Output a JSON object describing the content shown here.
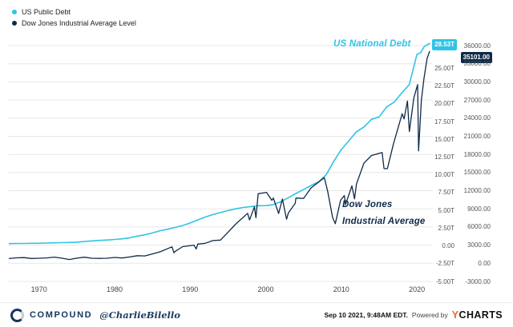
{
  "colors": {
    "cyan": "#2fc3e6",
    "navy": "#0e2b49",
    "orange": "#f26822",
    "grid": "#e7e7e7"
  },
  "legend": {
    "items": [
      {
        "label": "US Public Debt",
        "color": "#2fc3e6"
      },
      {
        "label": "Dow Jones Industrial Average Level",
        "color": "#0e2b49"
      }
    ]
  },
  "annotations": {
    "debt_label": "US National Debt",
    "dow_label_line1": "Dow Jones",
    "dow_label_line2": "Industrial Average",
    "debt_value": "28.53T",
    "dow_value": "35101.00"
  },
  "footer": {
    "brand": "COMPOUND",
    "handle": "@CharlieBilello",
    "timestamp": "Sep 10 2021, 9:48AM EDT.",
    "powered_by": "Powered by",
    "provider_y": "Y",
    "provider_rest": "CHARTS"
  },
  "chart_data": {
    "type": "line",
    "legend_position": "top-left",
    "grid": "horizontal",
    "x_axis": {
      "min": 1966,
      "max": 2021.9,
      "ticks": [
        1970,
        1980,
        1990,
        2000,
        2010,
        2020
      ]
    },
    "debt_axis": {
      "min": -5,
      "max": 25,
      "unit": "trillion USD",
      "ticks": [
        {
          "v": 25,
          "label": "25.00T"
        },
        {
          "v": 22.5,
          "label": "22.50T"
        },
        {
          "v": 20,
          "label": "20.00T"
        },
        {
          "v": 17.5,
          "label": "17.50T"
        },
        {
          "v": 15,
          "label": "15.00T"
        },
        {
          "v": 12.5,
          "label": "12.50T"
        },
        {
          "v": 10,
          "label": "10.00T"
        },
        {
          "v": 7.5,
          "label": "7.50T"
        },
        {
          "v": 5,
          "label": "5.00T"
        },
        {
          "v": 2.5,
          "label": "2.50T"
        },
        {
          "v": 0,
          "label": "0.00"
        },
        {
          "v": -2.5,
          "label": "-2.50T"
        },
        {
          "v": -5,
          "label": "-5.00T"
        }
      ]
    },
    "dow_axis": {
      "min": -3000,
      "max": 36000,
      "unit": "index points",
      "ticks": [
        {
          "v": 36000,
          "label": "36000.00"
        },
        {
          "v": 33000,
          "label": "33000.00"
        },
        {
          "v": 30000,
          "label": "30000.00"
        },
        {
          "v": 27000,
          "label": "27000.00"
        },
        {
          "v": 24000,
          "label": "24000.00"
        },
        {
          "v": 21000,
          "label": "21000.00"
        },
        {
          "v": 18000,
          "label": "18000.00"
        },
        {
          "v": 15000,
          "label": "15000.00"
        },
        {
          "v": 12000,
          "label": "12000.00"
        },
        {
          "v": 9000,
          "label": "9000.00"
        },
        {
          "v": 6000,
          "label": "6000.00"
        },
        {
          "v": 3000,
          "label": "3000.00"
        },
        {
          "v": 0,
          "label": "0.00"
        },
        {
          "v": -3000,
          "label": "-3000.00"
        }
      ]
    },
    "series": [
      {
        "name": "US Public Debt",
        "axis": "debt",
        "color": "#2fc3e6",
        "last_value_label": "28.53T",
        "x": [
          1966,
          1967,
          1968,
          1969,
          1970,
          1971,
          1972,
          1973,
          1974,
          1975,
          1976,
          1977,
          1978,
          1979,
          1980,
          1981,
          1982,
          1983,
          1984,
          1985,
          1986,
          1987,
          1988,
          1989,
          1990,
          1991,
          1992,
          1993,
          1994,
          1995,
          1996,
          1997,
          1998,
          1999,
          2000,
          2001,
          2002,
          2003,
          2004,
          2005,
          2006,
          2007,
          2008,
          2009,
          2010,
          2011,
          2012,
          2013,
          2014,
          2015,
          2016,
          2017,
          2018,
          2019,
          2020,
          2020.5,
          2021,
          2021.75
        ],
        "values": [
          0.32,
          0.34,
          0.35,
          0.37,
          0.37,
          0.4,
          0.43,
          0.46,
          0.48,
          0.53,
          0.62,
          0.7,
          0.77,
          0.83,
          0.91,
          1.0,
          1.14,
          1.38,
          1.56,
          1.82,
          2.13,
          2.35,
          2.6,
          2.87,
          3.23,
          3.67,
          4.06,
          4.41,
          4.69,
          4.97,
          5.22,
          5.41,
          5.53,
          5.66,
          5.67,
          5.81,
          6.23,
          6.78,
          7.38,
          7.93,
          8.51,
          9.01,
          10.02,
          11.91,
          13.56,
          14.79,
          16.07,
          16.74,
          17.82,
          18.15,
          19.57,
          20.24,
          21.52,
          22.72,
          26.95,
          27.2,
          28.1,
          28.53
        ]
      },
      {
        "name": "Dow Jones Industrial Average Level",
        "axis": "dow",
        "color": "#0e2b49",
        "last_value_label": "35101.00",
        "x": [
          1966,
          1967,
          1968,
          1969,
          1970,
          1971,
          1972,
          1973,
          1974,
          1975,
          1976,
          1977,
          1978,
          1979,
          1980,
          1981,
          1982,
          1983,
          1984,
          1985,
          1986,
          1987.6,
          1987.85,
          1988,
          1989,
          1990.5,
          1990.8,
          1991,
          1992,
          1993,
          1994,
          1995,
          1996,
          1997.6,
          1997.85,
          1998.5,
          1998.7,
          1999,
          2000.1,
          2000.8,
          2001,
          2001.7,
          2002.2,
          2002.75,
          2003,
          2003.9,
          2004,
          2005,
          2006,
          2007.75,
          2008.2,
          2008.85,
          2009.2,
          2009.9,
          2010.4,
          2010.55,
          2011.4,
          2011.75,
          2012,
          2013,
          2014,
          2015.4,
          2015.65,
          2016.1,
          2016.9,
          2018.05,
          2018.3,
          2018.75,
          2019.0,
          2019.6,
          2020.1,
          2020.22,
          2020.6,
          2020.95,
          2021.35,
          2021.55,
          2021.7
        ],
        "values": [
          785,
          905,
          944,
          800,
          839,
          890,
          1020,
          851,
          616,
          852,
          1005,
          831,
          805,
          839,
          964,
          875,
          1047,
          1259,
          1212,
          1547,
          1896,
          2722,
          1739,
          1939,
          2753,
          2999,
          2365,
          3169,
          3301,
          3754,
          3834,
          5117,
          6448,
          8259,
          7161,
          9337,
          7539,
          11497,
          11723,
          10415,
          10787,
          8236,
          10635,
          7286,
          8342,
          9900,
          10783,
          10718,
          12463,
          14164,
          11893,
          7552,
          6547,
          10428,
          11205,
          9686,
          12810,
          10655,
          13104,
          16577,
          17823,
          18312,
          15666,
          15660,
          19763,
          24719,
          23860,
          26828,
          21792,
          27359,
          29551,
          18592,
          27000,
          30606,
          33875,
          34577,
          35101
        ]
      }
    ]
  }
}
